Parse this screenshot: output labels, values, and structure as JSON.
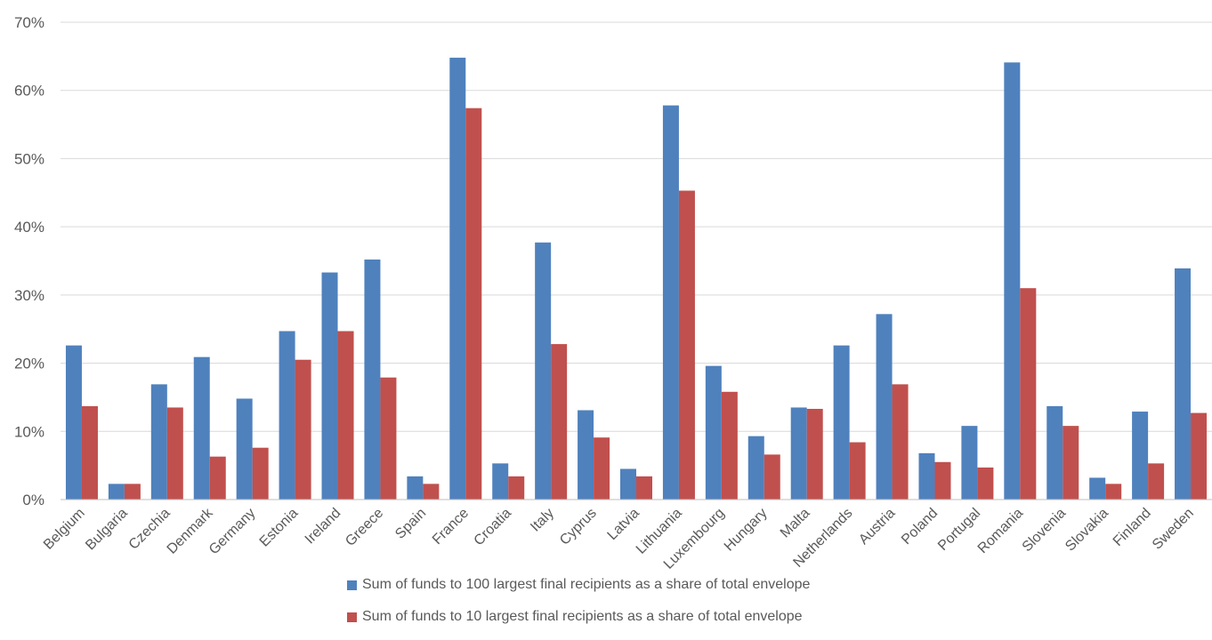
{
  "chart_data": {
    "type": "bar",
    "title": "",
    "xlabel": "",
    "ylabel": "",
    "ylim": [
      0,
      70
    ],
    "yticks": [
      "0%",
      "10%",
      "20%",
      "30%",
      "40%",
      "50%",
      "60%",
      "70%"
    ],
    "grid": true,
    "legend_position": "bottom",
    "categories": [
      "Belgium",
      "Bulgaria",
      "Czechia",
      "Denmark",
      "Germany",
      "Estonia",
      "Ireland",
      "Greece",
      "Spain",
      "France",
      "Croatia",
      "Italy",
      "Cyprus",
      "Latvia",
      "Lithuania",
      "Luxembourg",
      "Hungary",
      "Malta",
      "Netherlands",
      "Austria",
      "Poland",
      "Portugal",
      "Romania",
      "Slovenia",
      "Slovakia",
      "Finland",
      "Sweden"
    ],
    "series": [
      {
        "name": "Sum of funds to 100 largest final recipients as a share of total envelope",
        "color": "#4f81bd",
        "values": [
          22.6,
          2.3,
          16.9,
          20.9,
          14.8,
          24.7,
          33.3,
          35.2,
          3.4,
          64.8,
          5.3,
          37.7,
          13.1,
          4.5,
          57.8,
          19.6,
          9.3,
          13.5,
          22.6,
          27.2,
          6.8,
          10.8,
          64.1,
          13.7,
          3.2,
          12.9,
          33.9
        ]
      },
      {
        "name": "Sum of funds to 10 largest final recipients as a share of total envelope",
        "color": "#c0504d",
        "values": [
          13.7,
          2.3,
          13.5,
          6.3,
          7.6,
          20.5,
          24.7,
          17.9,
          2.3,
          57.4,
          3.4,
          22.8,
          9.1,
          3.4,
          45.3,
          15.8,
          6.6,
          13.3,
          8.4,
          16.9,
          5.5,
          4.7,
          31.0,
          10.8,
          2.3,
          5.3,
          12.7
        ]
      }
    ]
  }
}
